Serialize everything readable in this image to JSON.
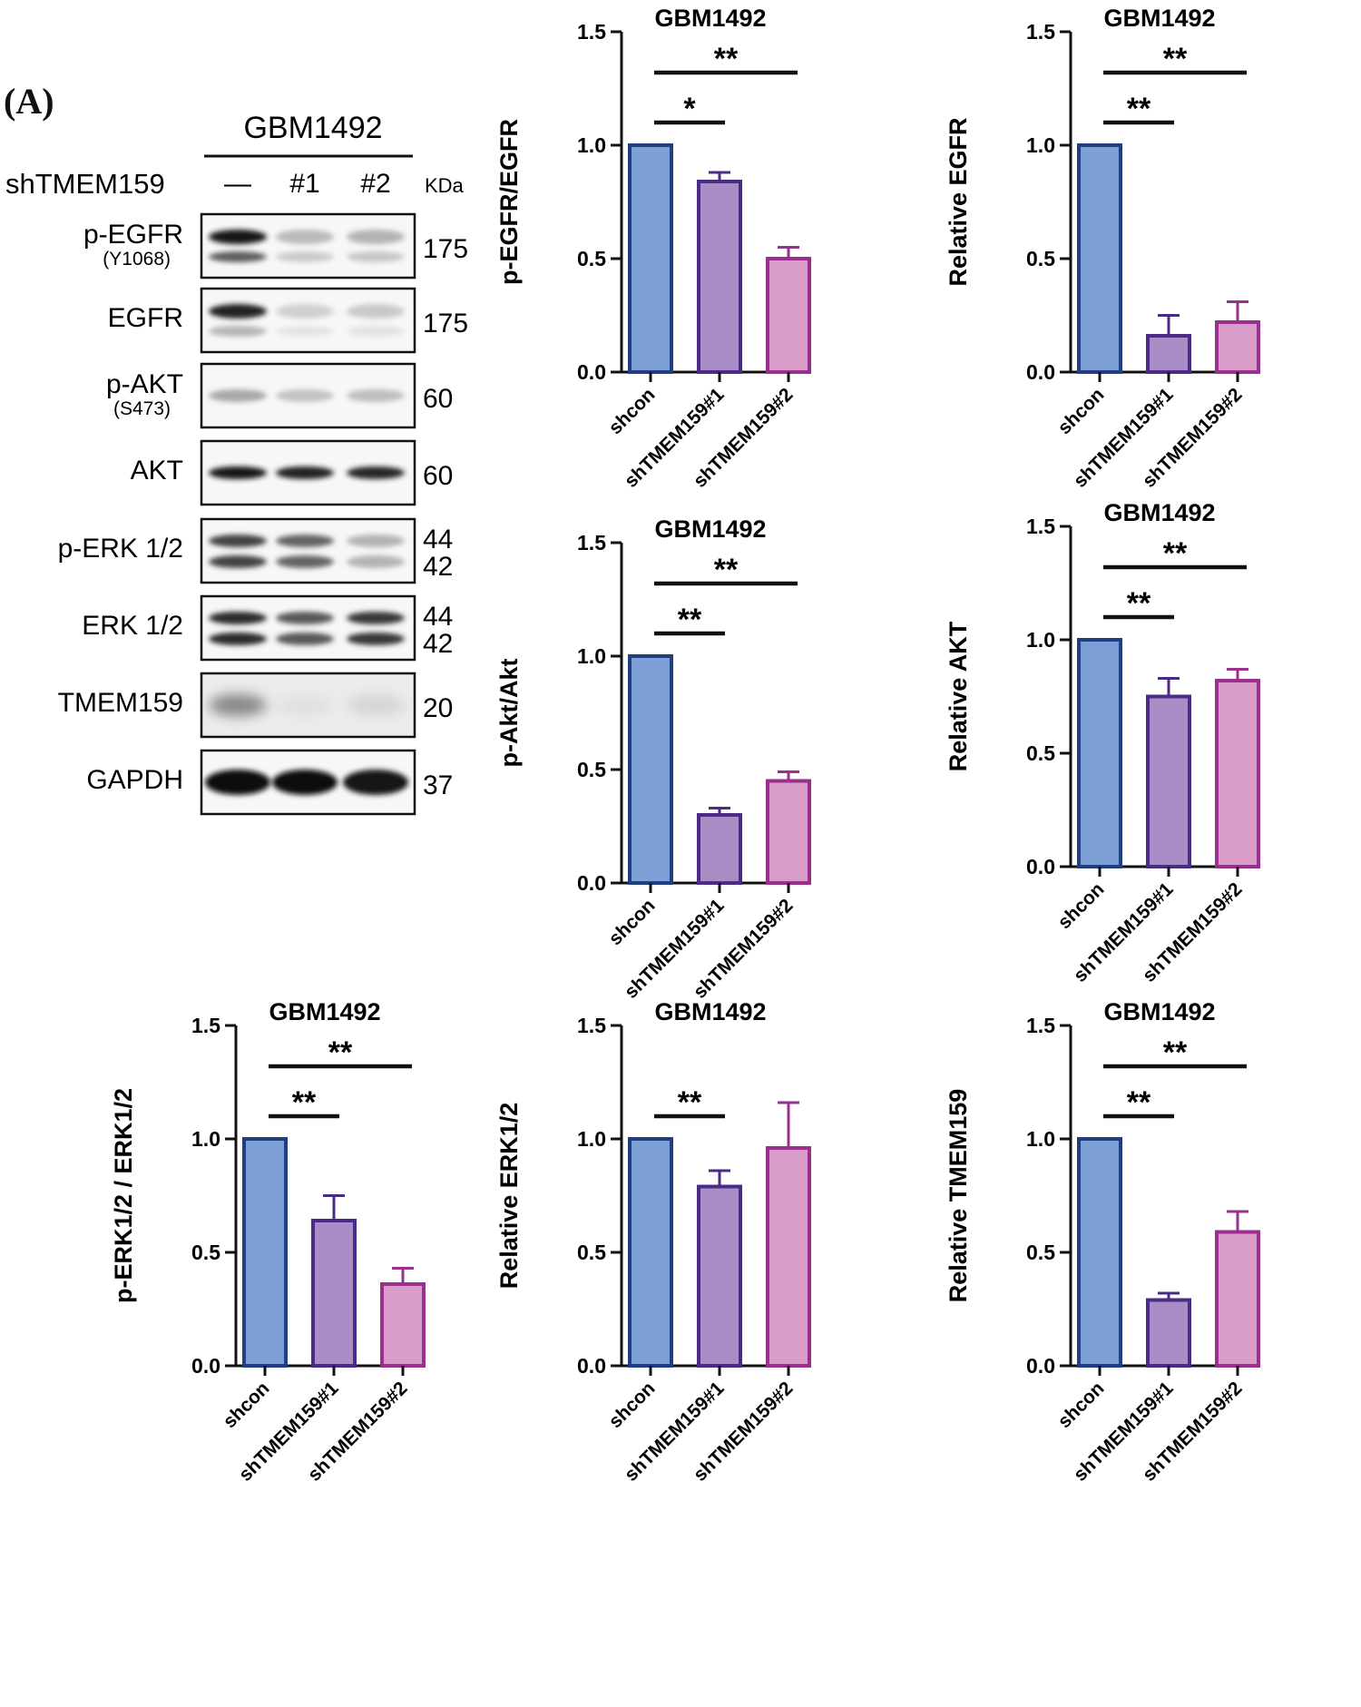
{
  "panel_label": "(A)",
  "blot": {
    "cell_line": "GBM1492",
    "condition_label": "shTMEM159",
    "lanes": [
      "—",
      "#1",
      "#2"
    ],
    "kda_label": "KDa",
    "rows": [
      {
        "name": "p-EGFR",
        "sub": "(Y1068)",
        "kda": [
          "175"
        ],
        "bands": [
          0.95,
          0.22,
          0.25
        ],
        "band_style": "double"
      },
      {
        "name": "EGFR",
        "sub": "",
        "kda": [
          "175"
        ],
        "bands": [
          0.9,
          0.12,
          0.15
        ],
        "band_style": "double-faint"
      },
      {
        "name": "p-AKT",
        "sub": "(S473)",
        "kda": [
          "60"
        ],
        "bands": [
          0.3,
          0.18,
          0.2
        ],
        "band_style": "single"
      },
      {
        "name": "AKT",
        "sub": "",
        "kda": [
          "60"
        ],
        "bands": [
          0.95,
          0.9,
          0.88
        ],
        "band_style": "single"
      },
      {
        "name": "p-ERK 1/2",
        "sub": "",
        "kda": [
          "44",
          "42"
        ],
        "bands": [
          0.75,
          0.6,
          0.25
        ],
        "band_style": "pair"
      },
      {
        "name": "ERK 1/2",
        "sub": "",
        "kda": [
          "44",
          "42"
        ],
        "bands": [
          0.85,
          0.65,
          0.8
        ],
        "band_style": "pair"
      },
      {
        "name": "TMEM159",
        "sub": "",
        "kda": [
          "20"
        ],
        "bands": [
          0.45,
          0.05,
          0.1
        ],
        "band_style": "blur"
      },
      {
        "name": "GAPDH",
        "sub": "",
        "kda": [
          "37"
        ],
        "bands": [
          1.0,
          1.0,
          0.95
        ],
        "band_style": "thick"
      }
    ]
  },
  "chart_data": [
    {
      "type": "bar",
      "title": "GBM1492",
      "ylabel": "p-EGFR/EGFR",
      "categories": [
        "shcon",
        "shTMEM159#1",
        "shTMEM159#2"
      ],
      "values": [
        1.0,
        0.84,
        0.5
      ],
      "errors": [
        0,
        0.04,
        0.05
      ],
      "ylim": [
        0,
        1.5
      ],
      "yticks": [
        "0.0",
        "0.5",
        "1.0",
        "1.5"
      ],
      "significance": [
        {
          "from": 0,
          "to": 1,
          "label": "*"
        },
        {
          "from": 0,
          "to": 2,
          "label": "**"
        }
      ]
    },
    {
      "type": "bar",
      "title": "GBM1492",
      "ylabel": "Relative EGFR",
      "categories": [
        "shcon",
        "shTMEM159#1",
        "shTMEM159#2"
      ],
      "values": [
        1.0,
        0.16,
        0.22
      ],
      "errors": [
        0,
        0.09,
        0.09
      ],
      "ylim": [
        0,
        1.5
      ],
      "yticks": [
        "0.0",
        "0.5",
        "1.0",
        "1.5"
      ],
      "significance": [
        {
          "from": 0,
          "to": 1,
          "label": "**"
        },
        {
          "from": 0,
          "to": 2,
          "label": "**"
        }
      ]
    },
    {
      "type": "bar",
      "title": "GBM1492",
      "ylabel": "p-Akt/Akt",
      "categories": [
        "shcon",
        "shTMEM159#1",
        "shTMEM159#2"
      ],
      "values": [
        1.0,
        0.3,
        0.45
      ],
      "errors": [
        0,
        0.03,
        0.04
      ],
      "ylim": [
        0,
        1.5
      ],
      "yticks": [
        "0.0",
        "0.5",
        "1.0",
        "1.5"
      ],
      "significance": [
        {
          "from": 0,
          "to": 1,
          "label": "**"
        },
        {
          "from": 0,
          "to": 2,
          "label": "**"
        }
      ]
    },
    {
      "type": "bar",
      "title": "GBM1492",
      "ylabel": "Relative AKT",
      "categories": [
        "shcon",
        "shTMEM159#1",
        "shTMEM159#2"
      ],
      "values": [
        1.0,
        0.75,
        0.82
      ],
      "errors": [
        0,
        0.08,
        0.05
      ],
      "ylim": [
        0,
        1.5
      ],
      "yticks": [
        "0.0",
        "0.5",
        "1.0",
        "1.5"
      ],
      "significance": [
        {
          "from": 0,
          "to": 1,
          "label": "**"
        },
        {
          "from": 0,
          "to": 2,
          "label": "**"
        }
      ]
    },
    {
      "type": "bar",
      "title": "GBM1492",
      "ylabel": "p-ERK1/2 / ERK1/2",
      "categories": [
        "shcon",
        "shTMEM159#1",
        "shTMEM159#2"
      ],
      "values": [
        1.0,
        0.64,
        0.36
      ],
      "errors": [
        0,
        0.11,
        0.07
      ],
      "ylim": [
        0,
        1.5
      ],
      "yticks": [
        "0.0",
        "0.5",
        "1.0",
        "1.5"
      ],
      "significance": [
        {
          "from": 0,
          "to": 1,
          "label": "**"
        },
        {
          "from": 0,
          "to": 2,
          "label": "**"
        }
      ]
    },
    {
      "type": "bar",
      "title": "GBM1492",
      "ylabel": "Relative ERK1/2",
      "categories": [
        "shcon",
        "shTMEM159#1",
        "shTMEM159#2"
      ],
      "values": [
        1.0,
        0.79,
        0.96
      ],
      "errors": [
        0,
        0.07,
        0.2
      ],
      "ylim": [
        0,
        1.5
      ],
      "yticks": [
        "0.0",
        "0.5",
        "1.0",
        "1.5"
      ],
      "significance": [
        {
          "from": 0,
          "to": 1,
          "label": "**"
        }
      ]
    },
    {
      "type": "bar",
      "title": "GBM1492",
      "ylabel": "Relative TMEM159",
      "categories": [
        "shcon",
        "shTMEM159#1",
        "shTMEM159#2"
      ],
      "values": [
        1.0,
        0.29,
        0.59
      ],
      "errors": [
        0,
        0.03,
        0.09
      ],
      "ylim": [
        0,
        1.5
      ],
      "yticks": [
        "0.0",
        "0.5",
        "1.0",
        "1.5"
      ],
      "significance": [
        {
          "from": 0,
          "to": 1,
          "label": "**"
        },
        {
          "from": 0,
          "to": 2,
          "label": "**"
        }
      ]
    }
  ],
  "colors": {
    "bar_fills": [
      "#7d9fd6",
      "#a88dc6",
      "#d99bc7"
    ],
    "bar_edges": [
      "#1f3f82",
      "#4a2b85",
      "#9a2f8e"
    ],
    "ink": "#111111"
  }
}
